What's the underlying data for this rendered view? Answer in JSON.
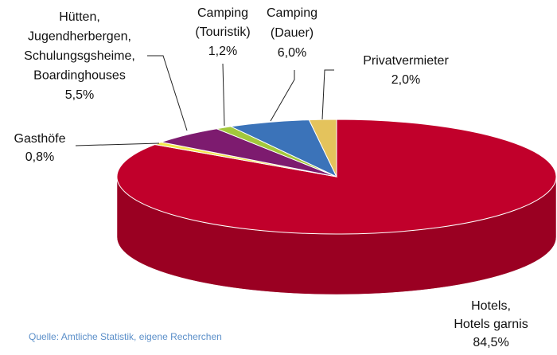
{
  "chart_data": {
    "type": "pie3d",
    "categories": [
      [
        "Hotels,",
        "Hotels garnis"
      ],
      [
        "Gasthöfe"
      ],
      [
        "Hütten,",
        "Jugendherbergen,",
        "Schulungsgsheime,",
        "Boardinghouses"
      ],
      [
        "Camping",
        "(Touristik)"
      ],
      [
        "Camping",
        "(Dauer)"
      ],
      [
        "Privatvermieter"
      ]
    ],
    "values": [
      84.5,
      0.8,
      5.5,
      1.2,
      6.0,
      2.0
    ],
    "value_labels": [
      "84,5%",
      "0,8%",
      "5,5%",
      "1,2%",
      "6,0%",
      "2,0%"
    ],
    "colors": [
      "#c1002b",
      "#f3e84c",
      "#7d1b6f",
      "#a3c83c",
      "#3b73b9",
      "#e4c35c"
    ],
    "source": "Quelle: Amtliche Statistik, eigene Recherchen"
  }
}
